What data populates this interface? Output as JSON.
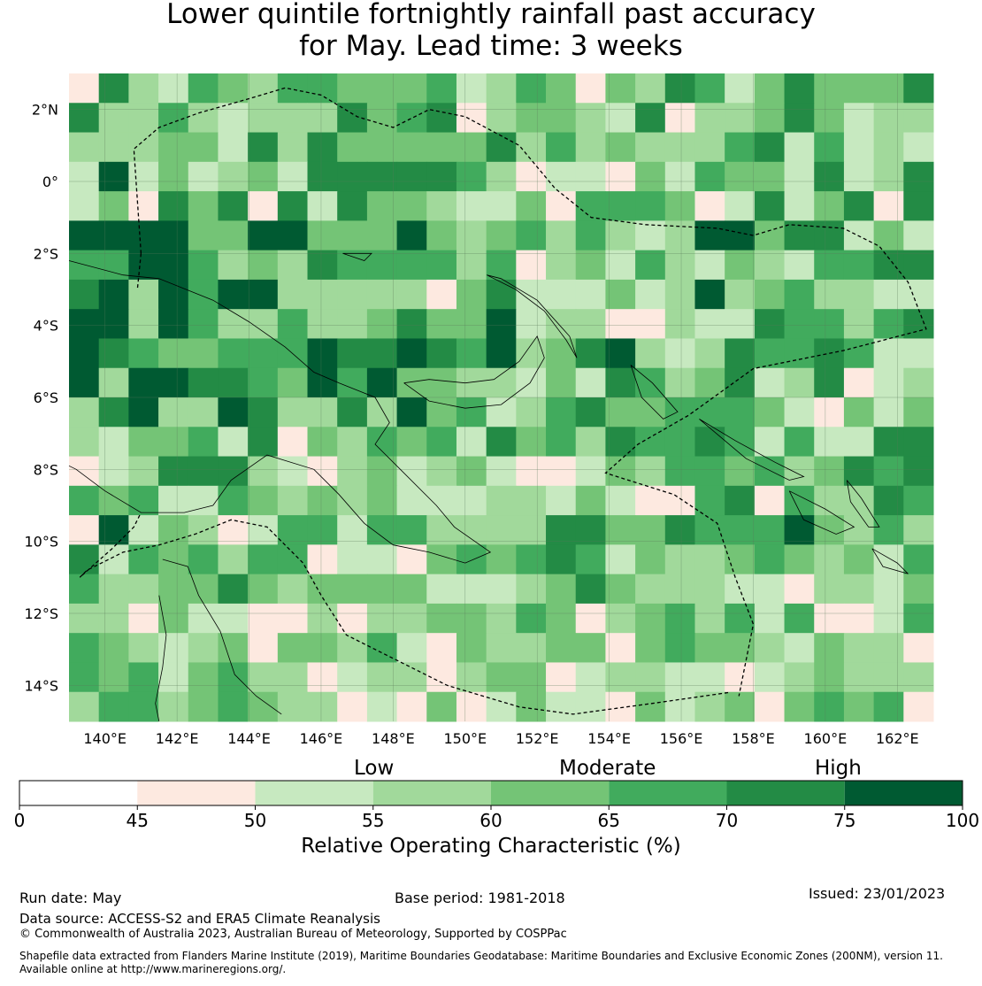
{
  "title": {
    "line1": "Lower quintile fortnightly rainfall past accuracy",
    "line2": "for May. Lead time: 3 weeks"
  },
  "map": {
    "lon_range": [
      139,
      163
    ],
    "lat_range": [
      -15,
      3
    ],
    "lon_ticks": [
      "140°E",
      "142°E",
      "144°E",
      "146°E",
      "148°E",
      "150°E",
      "152°E",
      "154°E",
      "156°E",
      "158°E",
      "160°E",
      "162°E"
    ],
    "lat_ticks": [
      "2°N",
      "0°",
      "2°S",
      "4°S",
      "6°S",
      "8°S",
      "10°S",
      "12°S",
      "14°S"
    ],
    "colors": {
      "0-45": "#ffffff",
      "45-50": "#fde9e0",
      "50-55": "#c7e9c0",
      "55-60": "#a1d99b",
      "60-65": "#74c476",
      "65-70": "#41ab5d",
      "70-75": "#238b45",
      "75-100": "#005a32",
      "coast": "#000000",
      "eez": "#000000"
    }
  },
  "legend": {
    "words": {
      "low": "Low",
      "moderate": "Moderate",
      "high": "High"
    },
    "ticks": [
      "0",
      "45",
      "50",
      "55",
      "60",
      "65",
      "70",
      "75",
      "100"
    ],
    "title": "Relative Operating Characteristic (%)"
  },
  "footer": {
    "run_date": "Run date: May",
    "base_period": "Base period: 1981-2018",
    "issued": "Issued: 23/01/2023",
    "data_source": "Data source: ACCESS-S2 and ERA5 Climate Reanalysis",
    "copyright": "© Commonwealth of Australia 2023, Australian Bureau of Meteorology, Supported by COSPPac",
    "shapefile_line1": "Shapefile data extracted from Flanders Marine Institute (2019), Maritime Boundaries Geodatabase: Maritime Boundaries and Exclusive Economic Zones (200NM), version 11.",
    "shapefile_line2": "Available online at http://www.marineregions.org/."
  }
}
